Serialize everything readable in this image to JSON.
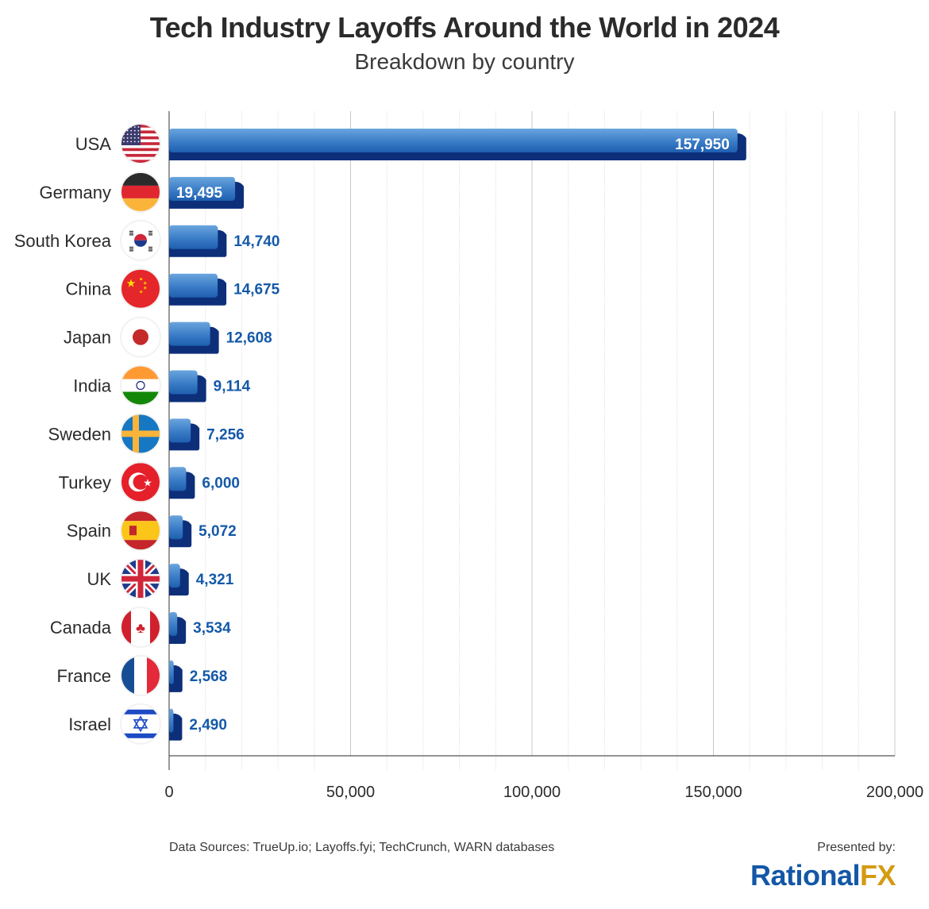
{
  "colors": {
    "bar_top": "#5b98d6",
    "bar_bottom": "#1f5fb0",
    "bar_shadow": "#0d2f7a",
    "value_label": "#1459a8",
    "value_label_inside": "#ffffff",
    "text": "#2b2b2b",
    "brand_blue": "#1357a6",
    "brand_gold": "#d49a12"
  },
  "footer": {
    "sources": "Data Sources: TrueUp.io; Layoffs.fyi; TechCrunch, WARN databases",
    "presented_by": "Presented by:",
    "logo_part1": "Rational",
    "logo_part2": "FX"
  },
  "chart_data": {
    "type": "bar",
    "orientation": "horizontal",
    "title": "Tech Industry Layoffs Around the World in 2024",
    "subtitle": "Breakdown by country",
    "xlabel": "",
    "ylabel": "",
    "xlim": [
      0,
      200000
    ],
    "xticks": [
      0,
      50000,
      100000,
      150000,
      200000
    ],
    "xtick_labels": [
      "0",
      "50,000",
      "100,000",
      "150,000",
      "200,000"
    ],
    "minor_grid_step": 10000,
    "grid": true,
    "categories": [
      "USA",
      "Germany",
      "South Korea",
      "China",
      "Japan",
      "India",
      "Sweden",
      "Turkey",
      "Spain",
      "UK",
      "Canada",
      "France",
      "Israel"
    ],
    "flags": [
      "us-flag-icon",
      "germany-flag-icon",
      "south-korea-flag-icon",
      "china-flag-icon",
      "japan-flag-icon",
      "india-flag-icon",
      "sweden-flag-icon",
      "turkey-flag-icon",
      "spain-flag-icon",
      "uk-flag-icon",
      "canada-flag-icon",
      "france-flag-icon",
      "israel-flag-icon"
    ],
    "values": [
      157950,
      19495,
      14740,
      14675,
      12608,
      9114,
      7256,
      6000,
      5072,
      4321,
      3534,
      2568,
      2490
    ],
    "value_labels": [
      "157,950",
      "19,495",
      "14,740",
      "14,675",
      "12,608",
      "9,114",
      "7,256",
      "6,000",
      "5,072",
      "4,321",
      "3,534",
      "2,568",
      "2,490"
    ],
    "label_inside": [
      true,
      true,
      false,
      false,
      false,
      false,
      false,
      false,
      false,
      false,
      false,
      false,
      false
    ]
  }
}
